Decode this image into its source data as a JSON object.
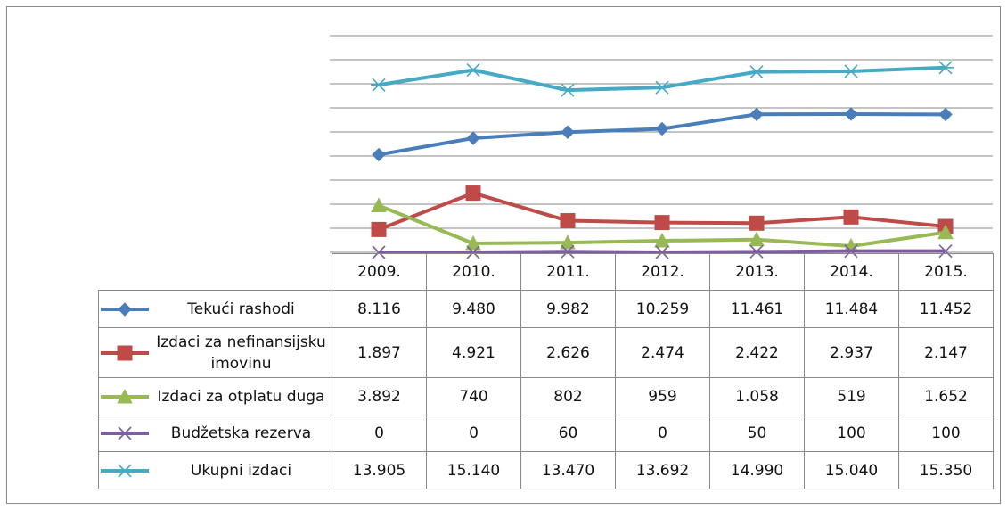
{
  "chart_data": {
    "type": "line",
    "categories": [
      "2009.",
      "2010.",
      "2011.",
      "2012.",
      "2013.",
      "2014.",
      "2015."
    ],
    "ylim": [
      0,
      18000
    ],
    "yticks": [
      0,
      2000,
      4000,
      6000,
      8000,
      10000,
      12000,
      14000,
      16000,
      18000
    ],
    "grid": true,
    "series": [
      {
        "name": "Tekući rashodi",
        "color": "#4a7ebb",
        "marker": "diamond",
        "values": [
          8116,
          9480,
          9982,
          10259,
          11461,
          11484,
          11452
        ],
        "value_labels": [
          "8.116",
          "9.480",
          "9.982",
          "10.259",
          "11.461",
          "11.484",
          "11.452"
        ]
      },
      {
        "name": "Izdaci za nefinansijsku imovinu",
        "color": "#be4b48",
        "marker": "square",
        "values": [
          1897,
          4921,
          2626,
          2474,
          2422,
          2937,
          2147
        ],
        "value_labels": [
          "1.897",
          "4.921",
          "2.626",
          "2.474",
          "2.422",
          "2.937",
          "2.147"
        ]
      },
      {
        "name": "Izdaci za otplatu duga",
        "color": "#98b954",
        "marker": "triangle",
        "values": [
          3892,
          740,
          802,
          959,
          1058,
          519,
          1652
        ],
        "value_labels": [
          "3.892",
          "740",
          "802",
          "959",
          "1.058",
          "519",
          "1.652"
        ]
      },
      {
        "name": "Budžetska rezerva",
        "color": "#7d5fa0",
        "marker": "x",
        "values": [
          0,
          0,
          60,
          0,
          50,
          100,
          100
        ],
        "value_labels": [
          "0",
          "0",
          "60",
          "0",
          "50",
          "100",
          "100"
        ]
      },
      {
        "name": "Ukupni izdaci",
        "color": "#46aac5",
        "marker": "star",
        "values": [
          13905,
          15140,
          13470,
          13692,
          14990,
          15040,
          15350
        ],
        "value_labels": [
          "13.905",
          "15.140",
          "13.470",
          "13.692",
          "14.990",
          "15.040",
          "15.350"
        ]
      }
    ]
  }
}
